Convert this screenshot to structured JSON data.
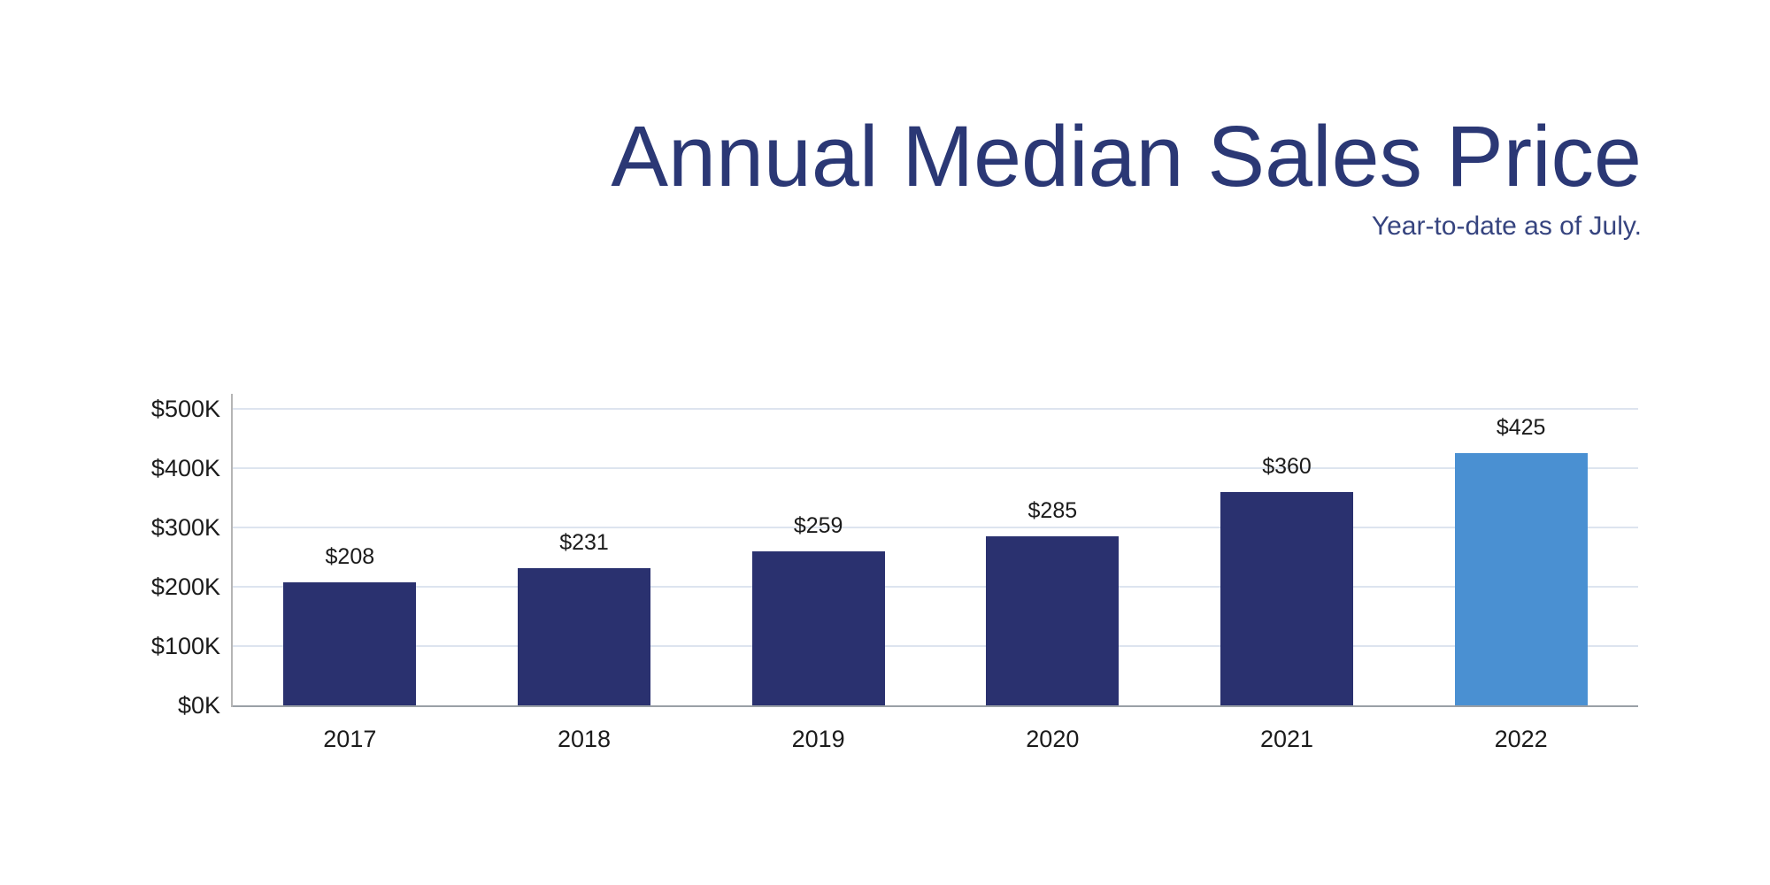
{
  "header": {
    "title": "Annual Median Sales Price",
    "subtitle": "Year-to-date as of July."
  },
  "colors": {
    "title_text": "#2b3875",
    "subtitle_text": "#36447f",
    "bar_default": "#2a316f",
    "bar_highlight": "#4a90d2",
    "gridline": "#dde4ef",
    "x_axis_line": "#9aa0a6",
    "y_axis_line": "#b5b5b5",
    "label_text": "#1b1b1b"
  },
  "chart_data": {
    "type": "bar",
    "title": "Annual Median Sales Price",
    "subtitle": "Year-to-date as of July.",
    "categories": [
      "2017",
      "2018",
      "2019",
      "2020",
      "2021",
      "2022"
    ],
    "values": [
      208,
      231,
      259,
      285,
      360,
      425
    ],
    "value_unit": "thousand dollars",
    "bar_labels": [
      "$208",
      "$231",
      "$259",
      "$285",
      "$360",
      "$425"
    ],
    "highlight_index": 5,
    "bar_color": "#2a316f",
    "highlight_color": "#4a90d2",
    "xlabel": "",
    "ylabel": "",
    "ylim": [
      0,
      500
    ],
    "y_ticks": [
      {
        "value": 0,
        "label": "$0K"
      },
      {
        "value": 100,
        "label": "$100K"
      },
      {
        "value": 200,
        "label": "$200K"
      },
      {
        "value": 300,
        "label": "$300K"
      },
      {
        "value": 400,
        "label": "$400K"
      },
      {
        "value": 500,
        "label": "$500K"
      }
    ],
    "grid": true,
    "legend_position": "none"
  }
}
